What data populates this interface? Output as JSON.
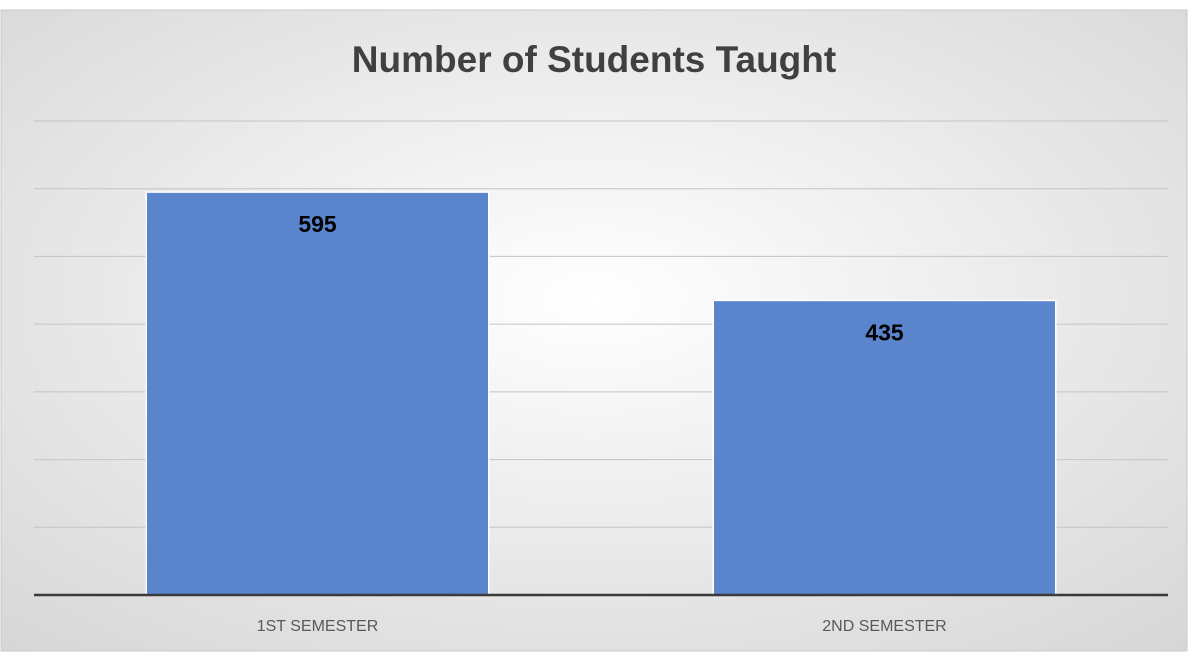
{
  "chart_data": {
    "type": "bar",
    "title": "Number of Students Taught",
    "categories": [
      "1ST SEMESTER",
      "2ND SEMESTER"
    ],
    "values": [
      595,
      435
    ],
    "color": "#5a84cc",
    "ylim": [
      0,
      700
    ],
    "yticks": [
      0,
      100,
      200,
      300,
      400,
      500,
      600,
      700
    ],
    "grid": true
  }
}
